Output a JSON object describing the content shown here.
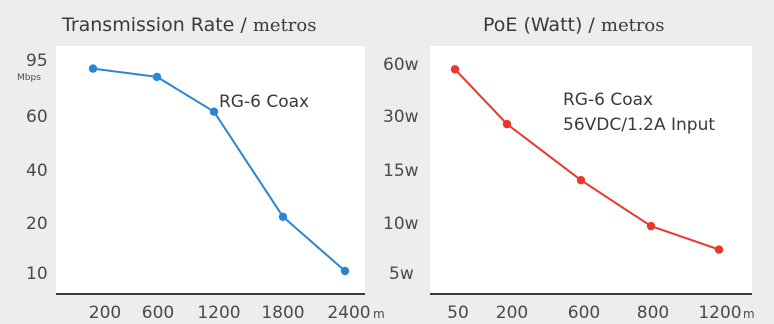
{
  "chart_data": [
    {
      "type": "line",
      "title": "Transmission Rate",
      "title_suffix": "metros",
      "y_unit": "Mbps",
      "x_unit": "m",
      "annotation": [
        "RG-6 Coax"
      ],
      "x": [
        200,
        600,
        1200,
        1800,
        2400
      ],
      "x_tick_labels": [
        "200",
        "600",
        "1200",
        "1800",
        "2400"
      ],
      "y_tick_labels": [
        "95",
        "60",
        "40",
        "20",
        "10"
      ],
      "series": [
        {
          "values": [
            88,
            83,
            62,
            22,
            10
          ],
          "color": "#2b86d2"
        }
      ]
    },
    {
      "type": "line",
      "title": "PoE (Watt)",
      "title_suffix": "metros",
      "x_unit": "m",
      "annotation": [
        "RG-6 Coax",
        "56VDC/1.2A Input"
      ],
      "x": [
        50,
        200,
        600,
        800,
        1200
      ],
      "x_tick_labels": [
        "50",
        "200",
        "600",
        "800",
        "1200"
      ],
      "y_tick_labels": [
        "60w",
        "30w",
        "15w",
        "10w",
        "5w"
      ],
      "series": [
        {
          "values": [
            56,
            28,
            14,
            9.5,
            7.2
          ],
          "color": "#e8382b"
        }
      ]
    }
  ]
}
